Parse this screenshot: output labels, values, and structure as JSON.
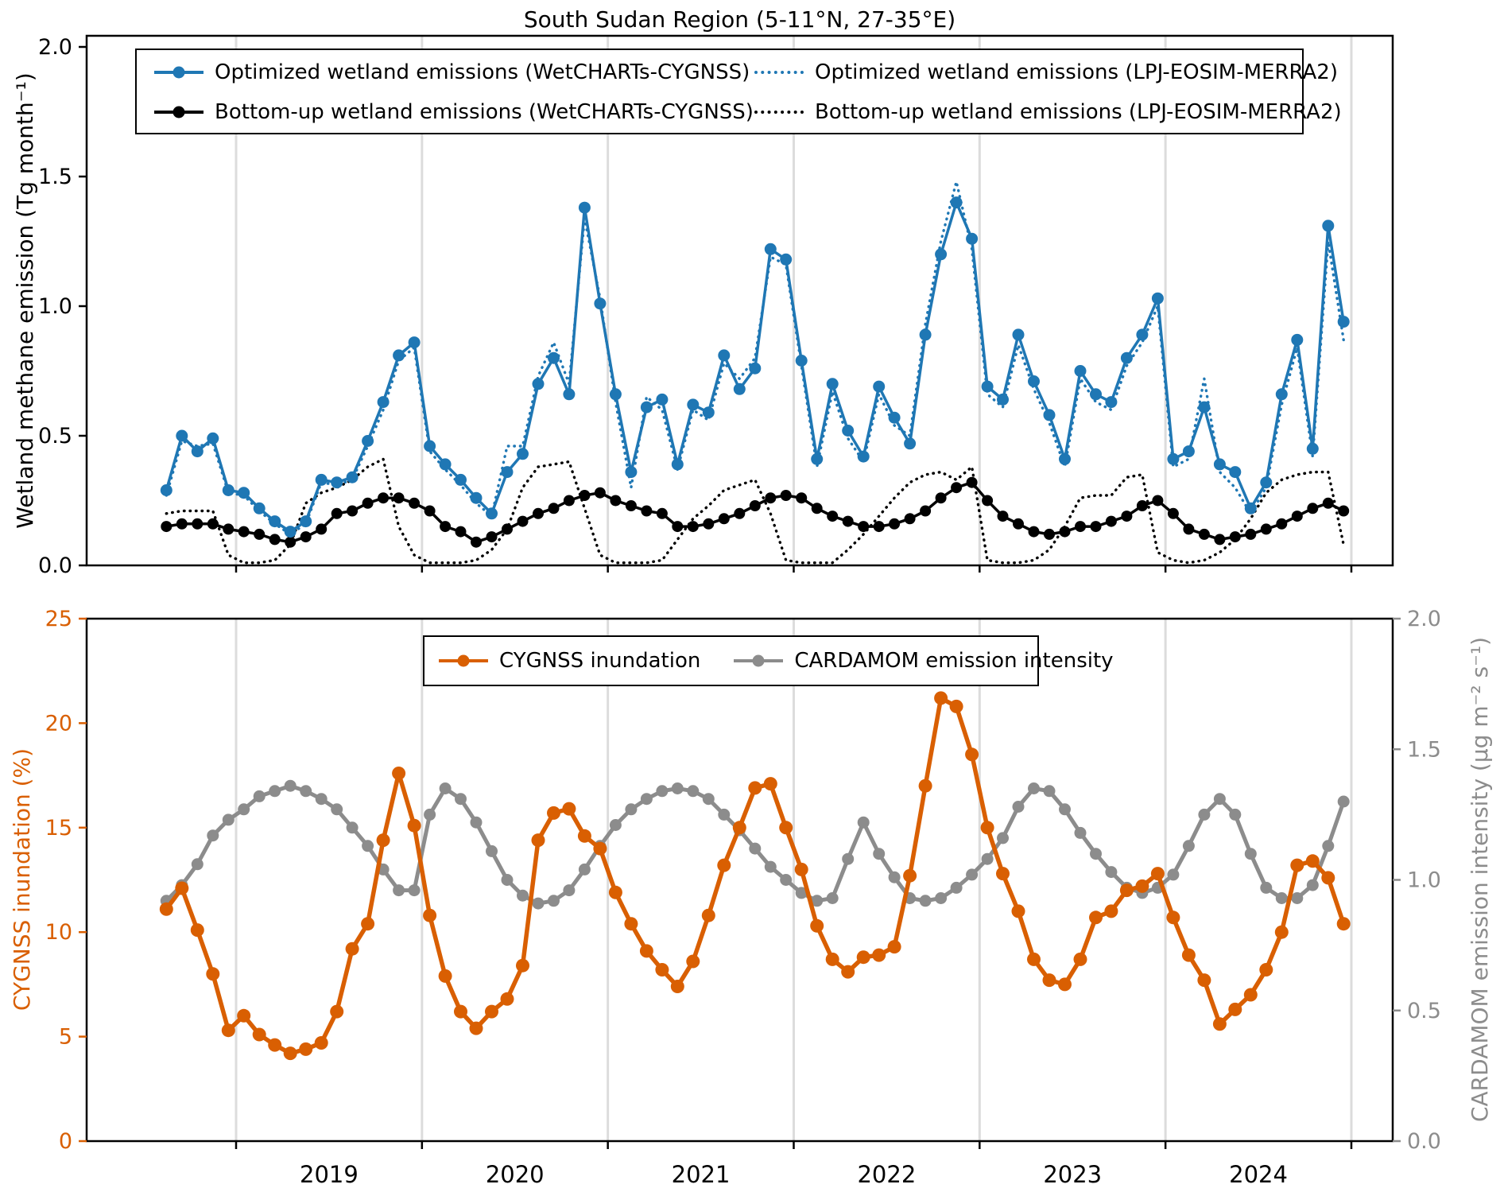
{
  "title": "South Sudan Region (5-11°N, 27-35°E)",
  "colors": {
    "blue": "#1f77b4",
    "black": "#000000",
    "orange": "#d95f02",
    "gray": "#8c8c8c",
    "gridline": "#dcdcdc",
    "spine": "#000000"
  },
  "top_panel": {
    "ylabel": "Wetland methane emission (Tg month⁻¹)",
    "ytick_labels": [
      "0.0",
      "0.5",
      "1.0",
      "1.5",
      "2.0"
    ],
    "yticks": [
      0.0,
      0.5,
      1.0,
      1.5,
      2.0
    ],
    "ylim": [
      0.0,
      2.0
    ]
  },
  "bottom_panel": {
    "ylabel_left": "CYGNSS inundation (%)",
    "ylabel_right": "CARDAMOM emission intensity (µg m⁻² s⁻¹)",
    "ytick_labels_left": [
      "0",
      "5",
      "10",
      "15",
      "20",
      "25"
    ],
    "yticks_left": [
      0,
      5,
      10,
      15,
      20,
      25
    ],
    "ylim_left": [
      0,
      25
    ],
    "ytick_labels_right": [
      "0.0",
      "0.5",
      "1.0",
      "1.5",
      "2.0"
    ],
    "yticks_right": [
      0.0,
      0.5,
      1.0,
      1.5,
      2.0
    ],
    "ylim_right": [
      0.0,
      2.0
    ]
  },
  "legend_top": [
    {
      "label": "Optimized wetland emissions (WetCHARTs-CYGNSS)",
      "color": "#1f77b4",
      "style": "solid-dot"
    },
    {
      "label": "Optimized wetland emissions (LPJ-EOSIM-MERRA2)",
      "color": "#1f77b4",
      "style": "dotted"
    },
    {
      "label": "Bottom-up wetland emissions (WetCHARTs-CYGNSS)",
      "color": "#000000",
      "style": "solid-dot"
    },
    {
      "label": "Bottom-up wetland emissions (LPJ-EOSIM-MERRA2)",
      "color": "#000000",
      "style": "dotted"
    }
  ],
  "legend_bottom": [
    {
      "label": "CYGNSS inundation",
      "color": "#d95f02",
      "style": "solid-dot"
    },
    {
      "label": "CARDAMOM emission intensity",
      "color": "#8c8c8c",
      "style": "solid-dot"
    }
  ],
  "xtick_years": [
    "2019",
    "2020",
    "2021",
    "2022",
    "2023",
    "2024"
  ],
  "chart_data": [
    {
      "type": "line",
      "panel": "top",
      "title": "South Sudan Region (5-11°N, 27-35°E)",
      "xlabel": "",
      "ylabel": "Wetland methane emission (Tg month⁻¹)",
      "x_start": "2018-08",
      "x_end": "2024-12",
      "x_freq": "monthly",
      "ylim": [
        0,
        2.0
      ],
      "grid": "vertical-year-lines",
      "legend_position": "upper center (inside, 2 columns)",
      "series": [
        {
          "name": "Optimized wetland emissions (WetCHARTs-CYGNSS)",
          "color": "#1f77b4",
          "line": "solid",
          "marker": "circle",
          "values": [
            0.29,
            0.5,
            0.44,
            0.49,
            0.29,
            0.28,
            0.22,
            0.17,
            0.13,
            0.17,
            0.33,
            0.32,
            0.34,
            0.48,
            0.63,
            0.81,
            0.86,
            0.46,
            0.39,
            0.33,
            0.26,
            0.2,
            0.36,
            0.43,
            0.7,
            0.8,
            0.66,
            1.38,
            1.01,
            0.66,
            0.36,
            0.61,
            0.64,
            0.39,
            0.62,
            0.59,
            0.81,
            0.68,
            0.76,
            1.22,
            1.18,
            0.79,
            0.41,
            0.7,
            0.52,
            0.42,
            0.69,
            0.57,
            0.47,
            0.89,
            1.2,
            1.4,
            1.26,
            0.69,
            0.64,
            0.89,
            0.71,
            0.58,
            0.41,
            0.75,
            0.66,
            0.63,
            0.8,
            0.89,
            1.03,
            0.41,
            0.44,
            0.61,
            0.39,
            0.36,
            0.22,
            0.32,
            0.66,
            0.87,
            0.45,
            1.31,
            0.94
          ]
        },
        {
          "name": "Optimized wetland emissions (LPJ-EOSIM-MERRA2)",
          "color": "#1f77b4",
          "line": "dotted",
          "marker": "none",
          "values": [
            0.27,
            0.48,
            0.46,
            0.47,
            0.28,
            0.27,
            0.21,
            0.16,
            0.12,
            0.16,
            0.32,
            0.31,
            0.33,
            0.46,
            0.6,
            0.79,
            0.84,
            0.44,
            0.37,
            0.31,
            0.24,
            0.19,
            0.46,
            0.46,
            0.73,
            0.86,
            0.7,
            1.34,
            1.03,
            0.63,
            0.3,
            0.65,
            0.6,
            0.37,
            0.6,
            0.56,
            0.78,
            0.72,
            0.8,
            1.19,
            1.16,
            0.77,
            0.38,
            0.67,
            0.49,
            0.4,
            0.66,
            0.54,
            0.5,
            0.93,
            1.25,
            1.48,
            1.22,
            0.66,
            0.61,
            0.85,
            0.68,
            0.55,
            0.38,
            0.72,
            0.63,
            0.6,
            0.77,
            0.86,
            1.0,
            0.38,
            0.41,
            0.72,
            0.36,
            0.3,
            0.2,
            0.3,
            0.62,
            0.84,
            0.42,
            1.25,
            0.87
          ]
        },
        {
          "name": "Bottom-up wetland emissions (WetCHARTs-CYGNSS)",
          "color": "#000000",
          "line": "solid",
          "marker": "circle",
          "values": [
            0.15,
            0.16,
            0.16,
            0.16,
            0.14,
            0.13,
            0.12,
            0.1,
            0.09,
            0.11,
            0.14,
            0.2,
            0.21,
            0.24,
            0.26,
            0.26,
            0.24,
            0.21,
            0.15,
            0.13,
            0.09,
            0.11,
            0.14,
            0.17,
            0.2,
            0.22,
            0.25,
            0.27,
            0.28,
            0.25,
            0.23,
            0.21,
            0.2,
            0.15,
            0.15,
            0.16,
            0.18,
            0.2,
            0.23,
            0.26,
            0.27,
            0.26,
            0.22,
            0.19,
            0.17,
            0.15,
            0.15,
            0.16,
            0.18,
            0.21,
            0.26,
            0.3,
            0.32,
            0.25,
            0.19,
            0.16,
            0.13,
            0.12,
            0.13,
            0.15,
            0.15,
            0.17,
            0.19,
            0.23,
            0.25,
            0.2,
            0.14,
            0.12,
            0.1,
            0.11,
            0.12,
            0.14,
            0.16,
            0.19,
            0.22,
            0.24,
            0.21
          ]
        },
        {
          "name": "Bottom-up wetland emissions (LPJ-EOSIM-MERRA2)",
          "color": "#000000",
          "line": "dotted",
          "marker": "none",
          "values": [
            0.2,
            0.21,
            0.21,
            0.21,
            0.04,
            0.01,
            0.01,
            0.02,
            0.08,
            0.24,
            0.28,
            0.3,
            0.33,
            0.38,
            0.41,
            0.15,
            0.04,
            0.01,
            0.01,
            0.01,
            0.02,
            0.06,
            0.14,
            0.3,
            0.38,
            0.39,
            0.4,
            0.22,
            0.04,
            0.01,
            0.01,
            0.01,
            0.02,
            0.1,
            0.18,
            0.23,
            0.29,
            0.31,
            0.33,
            0.2,
            0.02,
            0.01,
            0.01,
            0.01,
            0.06,
            0.12,
            0.19,
            0.26,
            0.32,
            0.35,
            0.36,
            0.33,
            0.38,
            0.02,
            0.01,
            0.01,
            0.02,
            0.06,
            0.15,
            0.26,
            0.27,
            0.27,
            0.34,
            0.35,
            0.05,
            0.02,
            0.01,
            0.02,
            0.05,
            0.1,
            0.18,
            0.28,
            0.33,
            0.35,
            0.36,
            0.36,
            0.08
          ]
        }
      ]
    },
    {
      "type": "line",
      "panel": "bottom",
      "xlabel": "",
      "ylabel_left": "CYGNSS inundation (%)",
      "ylabel_right": "CARDAMOM emission intensity (µg m⁻² s⁻¹)",
      "x_start": "2018-08",
      "x_end": "2024-12",
      "x_freq": "monthly",
      "ylim_left": [
        0,
        25
      ],
      "ylim_right": [
        0,
        2.0
      ],
      "grid": "vertical-year-lines",
      "legend_position": "upper center (inside, 1 row)",
      "series": [
        {
          "name": "CYGNSS inundation",
          "axis": "left",
          "color": "#d95f02",
          "line": "solid",
          "marker": "circle",
          "values": [
            11.1,
            12.1,
            10.1,
            8.0,
            5.3,
            6.0,
            5.1,
            4.6,
            4.2,
            4.4,
            4.7,
            6.2,
            9.2,
            10.4,
            14.4,
            17.6,
            15.1,
            10.8,
            7.9,
            6.2,
            5.4,
            6.2,
            6.8,
            8.4,
            14.4,
            15.7,
            15.9,
            14.6,
            14.0,
            11.9,
            10.4,
            9.1,
            8.2,
            7.4,
            8.6,
            10.8,
            13.2,
            15.0,
            16.9,
            17.1,
            15.0,
            13.0,
            10.3,
            8.7,
            8.1,
            8.8,
            8.9,
            9.3,
            12.7,
            17.0,
            21.2,
            20.8,
            18.5,
            15.0,
            12.8,
            11.0,
            8.7,
            7.7,
            7.5,
            8.7,
            10.7,
            11.0,
            12.0,
            12.2,
            12.8,
            10.7,
            8.9,
            7.7,
            5.6,
            6.3,
            7.0,
            8.2,
            10.0,
            13.2,
            13.4,
            12.6,
            10.4
          ]
        },
        {
          "name": "CARDAMOM emission intensity",
          "axis": "right",
          "color": "#8c8c8c",
          "line": "solid",
          "marker": "circle",
          "values": [
            0.92,
            0.98,
            1.06,
            1.17,
            1.23,
            1.27,
            1.32,
            1.34,
            1.36,
            1.34,
            1.31,
            1.27,
            1.2,
            1.13,
            1.04,
            0.96,
            0.96,
            1.25,
            1.35,
            1.31,
            1.22,
            1.11,
            1.0,
            0.94,
            0.91,
            0.92,
            0.96,
            1.04,
            1.13,
            1.21,
            1.27,
            1.31,
            1.34,
            1.35,
            1.34,
            1.31,
            1.25,
            1.19,
            1.12,
            1.05,
            1.0,
            0.95,
            0.92,
            0.93,
            1.08,
            1.22,
            1.1,
            1.01,
            0.93,
            0.92,
            0.93,
            0.97,
            1.02,
            1.08,
            1.16,
            1.28,
            1.35,
            1.34,
            1.27,
            1.18,
            1.1,
            1.03,
            0.97,
            0.95,
            0.97,
            1.02,
            1.13,
            1.25,
            1.31,
            1.25,
            1.1,
            0.97,
            0.93,
            0.93,
            0.98,
            1.13,
            1.3
          ]
        }
      ]
    }
  ]
}
